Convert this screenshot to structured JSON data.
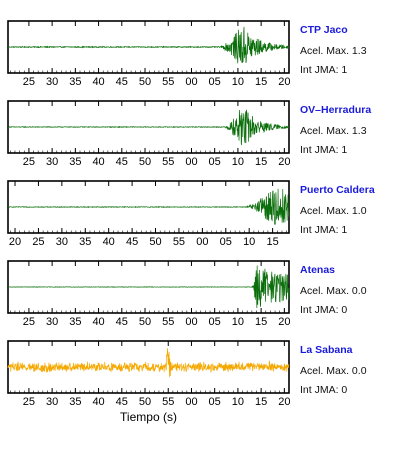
{
  "chart_data": {
    "type": "line",
    "xlabel": "Tiempo (s)",
    "panels": [
      {
        "station": "CTP Jaco",
        "accel_label": "Acel. Max. 1.3",
        "int_label": "Int JMA: 1",
        "color": "#0a6e0a",
        "tick_labels": [
          "25",
          "30",
          "35",
          "40",
          "45",
          "50",
          "55",
          "00",
          "05",
          "10",
          "15",
          "20"
        ],
        "tick_start": 25,
        "tick_step": 5,
        "x_range": [
          20.5,
          81
        ],
        "onset": 66,
        "peak_time": 71,
        "peak_amp": 1.0,
        "pre_noise": 0.02,
        "decay": 3.2
      },
      {
        "station": "OV–Herradura",
        "accel_label": "Acel. Max. 1.3",
        "int_label": "Int JMA: 1",
        "color": "#0a6e0a",
        "tick_labels": [
          "25",
          "30",
          "35",
          "40",
          "45",
          "50",
          "55",
          "00",
          "05",
          "10",
          "15",
          "20"
        ],
        "tick_start": 25,
        "tick_step": 5,
        "x_range": [
          20.5,
          81
        ],
        "onset": 67,
        "peak_time": 71,
        "peak_amp": 1.0,
        "pre_noise": 0.015,
        "decay": 3.0
      },
      {
        "station": "Puerto Caldera",
        "accel_label": "Acel. Max. 1.0",
        "int_label": "Int JMA: 1",
        "color": "#0a6e0a",
        "tick_labels": [
          "20",
          "25",
          "30",
          "35",
          "40",
          "45",
          "50",
          "55",
          "00",
          "05",
          "10",
          "15"
        ],
        "tick_start": 20,
        "tick_step": 5,
        "x_range": [
          18.5,
          78.5
        ],
        "onset": 69,
        "peak_time": 76,
        "peak_amp": 1.0,
        "pre_noise": 0.015,
        "decay": 5.0
      },
      {
        "station": "Atenas",
        "accel_label": "Acel. Max. 0.0",
        "int_label": "Int JMA: 0",
        "color": "#0a6e0a",
        "tick_labels": [
          "25",
          "30",
          "35",
          "40",
          "45",
          "50",
          "55",
          "00",
          "05",
          "10",
          "15",
          "20"
        ],
        "tick_start": 25,
        "tick_step": 5,
        "x_range": [
          20.5,
          81
        ],
        "onset": 73,
        "peak_time": 74,
        "peak_amp": 1.0,
        "pre_noise": 0.01,
        "decay": 12
      },
      {
        "station": "La Sabana",
        "accel_label": "Acel. Max. 0.0",
        "int_label": "Int JMA: 0",
        "color": "#f5a800",
        "tick_labels": [
          "25",
          "30",
          "35",
          "40",
          "45",
          "50",
          "55",
          "00",
          "05",
          "10",
          "15",
          "20"
        ],
        "tick_start": 25,
        "tick_step": 5,
        "x_range": [
          20.5,
          81
        ],
        "onset": 20.5,
        "peak_time": 55,
        "peak_amp": 0.9,
        "pre_noise": 0.18,
        "decay": 0.4
      }
    ]
  }
}
